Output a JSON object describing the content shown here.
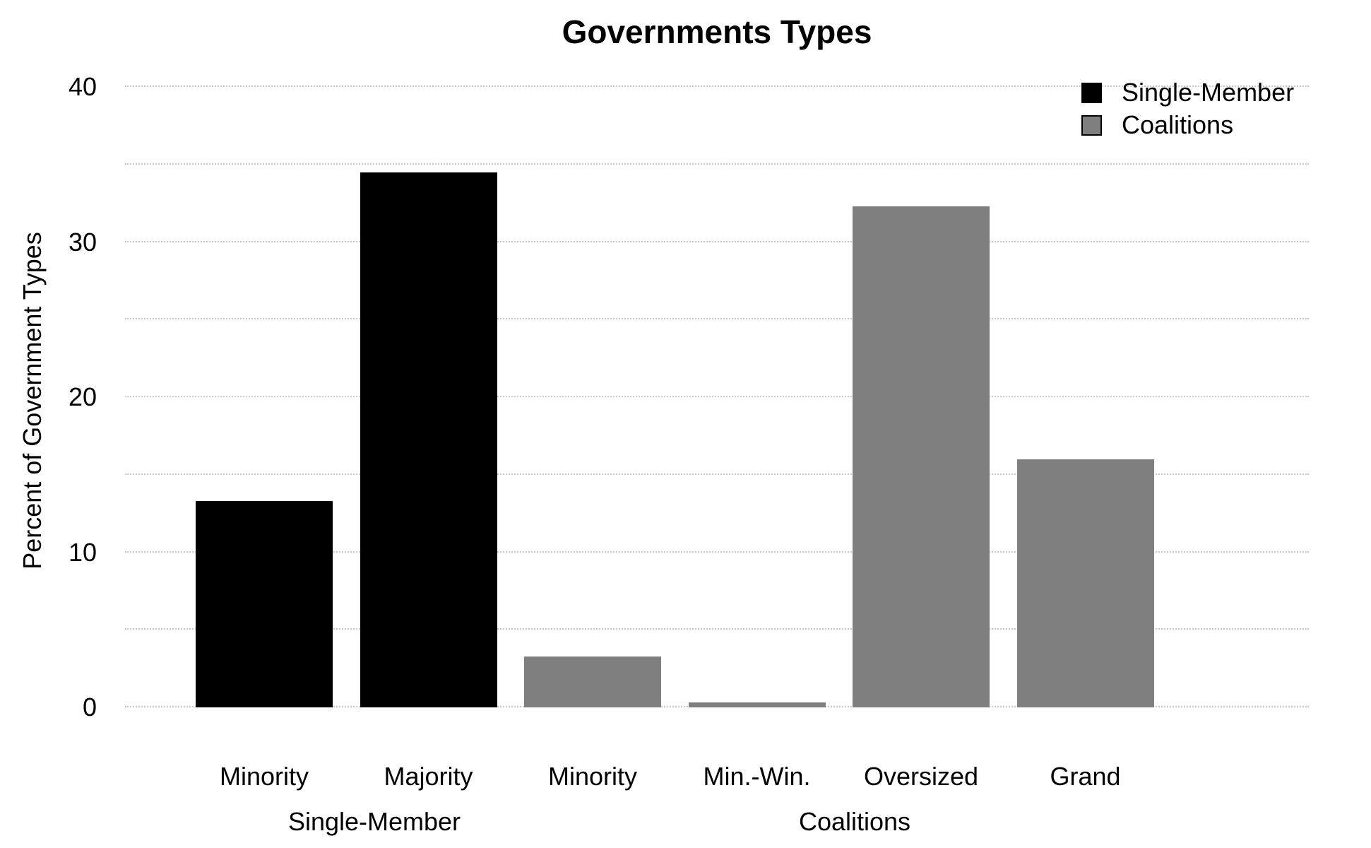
{
  "title": "Governments Types",
  "y_axis": {
    "label": "Percent of Government Types",
    "tick_labels": [
      "0",
      "10",
      "20",
      "30",
      "40"
    ],
    "tick_values": [
      0,
      10,
      20,
      30,
      40
    ]
  },
  "x_axis": {
    "categories": [
      "Minority",
      "Majority",
      "Minority",
      "Min.-Win.",
      "Oversized",
      "Grand"
    ],
    "group_labels": [
      {
        "label": "Single-Member"
      },
      {
        "label": "Coalitions"
      }
    ]
  },
  "legend": {
    "items": [
      {
        "label": "Single-Member",
        "color": "#000000"
      },
      {
        "label": "Coalitions",
        "color": "#7f7f7f"
      }
    ]
  },
  "colors": {
    "bar_black": "#000000",
    "bar_gray": "#7f7f7f",
    "gridline": "#c8c8c8",
    "text": "#000000",
    "background": "#ffffff"
  },
  "chart_data": {
    "type": "bar",
    "title": "Governments Types",
    "xlabel": "",
    "ylabel": "Percent of Government Types",
    "ylim": [
      0,
      40
    ],
    "ytick_interval": 10,
    "grid_interval": 5,
    "grid": "horizontal dotted",
    "legend_position": "top-right",
    "categories": [
      "Minority",
      "Majority",
      "Minority",
      "Min.-Win.",
      "Oversized",
      "Grand"
    ],
    "values": [
      13.3,
      34.5,
      3.3,
      0.3,
      32.3,
      16.0
    ],
    "bar_series": [
      "Single-Member",
      "Single-Member",
      "Coalitions",
      "Coalitions",
      "Coalitions",
      "Coalitions"
    ],
    "bar_colors": [
      "#000000",
      "#000000",
      "#7f7f7f",
      "#7f7f7f",
      "#7f7f7f",
      "#7f7f7f"
    ],
    "series": [
      {
        "name": "Single-Member",
        "color": "#000000",
        "categories": [
          "Minority",
          "Majority"
        ],
        "values": [
          13.3,
          34.5
        ]
      },
      {
        "name": "Coalitions",
        "color": "#7f7f7f",
        "categories": [
          "Minority",
          "Min.-Win.",
          "Oversized",
          "Grand"
        ],
        "values": [
          3.3,
          0.3,
          32.3,
          16.0
        ]
      }
    ],
    "group_axis_labels": [
      "Single-Member",
      "Coalitions"
    ]
  }
}
